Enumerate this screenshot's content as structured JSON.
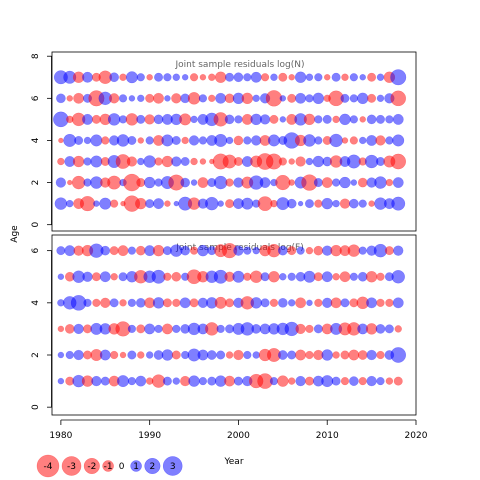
{
  "colors": {
    "positive": "#0000ff",
    "negative": "#ff0000",
    "fill_opacity": 0.5,
    "frame": "#000000",
    "title_text": "#666666"
  },
  "chart_data": {
    "type": "scatter",
    "subtype": "bubble residual plot",
    "ylabel": "Age",
    "xlabel": "Year",
    "xlim": [
      1979,
      2020
    ],
    "xticks": [
      1980,
      1990,
      2000,
      2010,
      2020
    ],
    "grid": false,
    "legend": {
      "placement": "bottom-left",
      "entries": [
        {
          "label": "-4",
          "value": -4
        },
        {
          "label": "-3",
          "value": -3
        },
        {
          "label": "-2",
          "value": -2
        },
        {
          "label": "-1",
          "value": -1
        },
        {
          "label": "0",
          "value": 0
        },
        {
          "label": "1",
          "value": 1
        },
        {
          "label": "2",
          "value": 2
        },
        {
          "label": "3",
          "value": 3
        }
      ]
    },
    "panels": [
      {
        "title": "Joint sample residuals log(N)",
        "ylim": [
          -0.3,
          8.2
        ],
        "yticks": [
          0,
          2,
          4,
          6,
          8
        ],
        "ages": [
          1,
          2,
          3,
          4,
          5,
          6,
          7
        ],
        "years": [
          1980,
          2018
        ],
        "residuals": [
          [
            1.2,
            0.4,
            -0.9,
            -1.8,
            0.3,
            1.1,
            -0.5,
            -0.2,
            -2.1,
            -1.0,
            0.6,
            0.9,
            -0.3,
            0.2,
            1.5,
            -1.2,
            0.8,
            1.4,
            0.3,
            -0.6,
            0.9,
            1.1,
            0.5,
            -1.7,
            -0.4,
            1.3,
            0.7,
            0.2,
            0.6,
            -0.5,
            1.0,
            0.4,
            -0.8,
            0.7,
            0.5,
            -0.3,
            1.2,
            0.9,
            1.5
          ],
          [
            0.8,
            -0.2,
            -1.4,
            0.5,
            1.2,
            -0.8,
            -1.5,
            0.4,
            -2.4,
            -0.6,
            1.0,
            0.5,
            1.3,
            -2.0,
            0.7,
            0.3,
            -0.9,
            0.6,
            1.4,
            -0.5,
            0.8,
            -1.1,
            1.6,
            0.9,
            0.4,
            -1.8,
            -0.3,
            1.1,
            -2.1,
            0.6,
            -0.9,
            0.5,
            1.0,
            0.3,
            -0.7,
            0.8,
            1.2,
            -0.4,
            0.9
          ],
          [
            -0.4,
            0.9,
            -1.0,
            0.5,
            1.1,
            -0.6,
            1.3,
            -1.7,
            -0.8,
            0.4,
            1.2,
            -0.5,
            -1.0,
            0.8,
            0.6,
            -0.4,
            -0.3,
            -0.2,
            -2.0,
            -1.5,
            -0.6,
            0.9,
            -1.1,
            -2.2,
            -2.0,
            -0.5,
            -0.3,
            -0.8,
            0.4,
            1.0,
            0.7,
            -1.2,
            0.9,
            1.5,
            -0.5,
            1.4,
            0.6,
            -1.1,
            -1.9
          ],
          [
            -0.2,
            1.3,
            0.6,
            0.4,
            1.1,
            -0.5,
            0.8,
            1.2,
            0.6,
            -0.3,
            0.5,
            -0.9,
            1.1,
            0.6,
            -0.4,
            0.8,
            0.5,
            0.9,
            1.3,
            0.4,
            -0.7,
            0.5,
            0.8,
            -0.9,
            1.1,
            0.6,
            2.1,
            -1.0,
            1.2,
            0.5,
            -0.6,
            1.4,
            -0.3,
            -0.5,
            0.4,
            0.9,
            -0.8,
            0.5,
            1.1
          ],
          [
            1.9,
            -0.4,
            -1.4,
            0.9,
            -0.6,
            -1.0,
            1.2,
            0.5,
            -1.2,
            0.6,
            -0.8,
            0.7,
            0.9,
            1.0,
            -1.1,
            0.4,
            0.9,
            1.4,
            -1.6,
            0.7,
            0.5,
            -0.9,
            1.0,
            0.8,
            -0.6,
            0.3,
            -0.9,
            1.2,
            -1.0,
            0.5,
            0.6,
            -0.4,
            1.0,
            0.5,
            -0.3,
            0.7,
            0.6,
            0.5,
            0.9
          ],
          [
            0.7,
            -0.3,
            -0.9,
            0.6,
            -2.0,
            1.4,
            -0.8,
            0.5,
            0.3,
            0.4,
            -0.6,
            -0.9,
            0.3,
            -0.8,
            0.7,
            -1.2,
            0.5,
            -0.4,
            0.9,
            -0.7,
            1.0,
            -1.0,
            0.4,
            0.8,
            -2.1,
            0.3,
            -0.6,
            0.9,
            0.5,
            1.0,
            -0.4,
            -1.9,
            0.6,
            0.5,
            1.0,
            -0.6,
            0.4,
            0.8,
            -1.9
          ],
          [
            1.5,
            1.3,
            -1.0,
            0.9,
            -0.6,
            -1.4,
            0.7,
            -0.4,
            1.1,
            0.5,
            -0.3,
            0.6,
            0.5,
            0.4,
            0.3,
            -0.5,
            -0.3,
            -0.4,
            -1.0,
            0.6,
            0.7,
            0.5,
            0.9,
            -0.5,
            0.4,
            -0.6,
            -0.3,
            1.0,
            0.4,
            0.5,
            -0.3,
            0.6,
            -0.4,
            0.5,
            0.3,
            -0.6,
            0.4,
            -1.0,
            2.0
          ]
        ]
      },
      {
        "title": "Joint sample residuals log(F)",
        "ylim": [
          -0.3,
          6.6
        ],
        "yticks": [
          0,
          2,
          4,
          6
        ],
        "ages": [
          1,
          2,
          3,
          4,
          5,
          6
        ],
        "years": [
          1980,
          2018
        ],
        "residuals": [
          [
            0.3,
            -0.6,
            1.2,
            -1.0,
            0.8,
            0.6,
            -0.9,
            1.1,
            0.5,
            0.9,
            -0.4,
            -1.4,
            0.6,
            0.4,
            -0.8,
            1.0,
            0.5,
            0.6,
            1.0,
            -0.9,
            0.6,
            0.8,
            -1.6,
            -1.9,
            0.5,
            -1.0,
            -0.4,
            0.8,
            -0.6,
            0.9,
            1.1,
            0.6,
            -0.5,
            0.7,
            -0.5,
            0.8,
            0.5,
            -0.4,
            -0.6
          ],
          [
            0.3,
            0.5,
            0.8,
            -0.6,
            -1.1,
            0.9,
            -0.5,
            -0.3,
            0.6,
            -0.4,
            0.4,
            0.7,
            1.0,
            -0.6,
            0.5,
            1.3,
            0.9,
            0.7,
            0.6,
            -0.4,
            -0.8,
            0.5,
            0.4,
            -1.2,
            -1.5,
            0.7,
            0.6,
            -0.9,
            -0.5,
            -0.8,
            1.0,
            -0.4,
            -0.6,
            -0.9,
            -0.7,
            0.8,
            -0.5,
            0.7,
            1.9
          ],
          [
            -0.3,
            -0.7,
            0.8,
            -0.6,
            1.1,
            1.0,
            -1.0,
            -1.8,
            0.5,
            -0.6,
            0.9,
            0.5,
            -0.9,
            0.5,
            0.7,
            1.2,
            0.9,
            -1.4,
            0.5,
            0.6,
            1.1,
            1.4,
            0.7,
            0.9,
            1.0,
            1.2,
            1.6,
            -0.8,
            -0.5,
            0.6,
            -0.9,
            1.1,
            -1.3,
            -1.4,
            0.9,
            -1.0,
            0.7,
            0.6,
            -0.4
          ],
          [
            0.4,
            1.4,
            1.9,
            0.5,
            -0.5,
            -0.8,
            0.6,
            -0.4,
            0.5,
            0.7,
            -0.9,
            1.0,
            -0.6,
            -0.5,
            0.9,
            -0.6,
            0.8,
            1.0,
            -1.1,
            -0.6,
            0.8,
            -1.4,
            1.0,
            0.6,
            -0.5,
            0.7,
            0.4,
            -0.9,
            0.3,
            -0.5,
            0.8,
            -0.9,
            0.6,
            -0.6,
            -1.2,
            0.9,
            -0.5,
            -0.5,
            0.9
          ],
          [
            0.3,
            -0.7,
            1.2,
            0.8,
            -0.6,
            0.9,
            -0.4,
            0.6,
            1.0,
            -1.4,
            1.2,
            1.5,
            -0.5,
            -0.7,
            0.5,
            -1.7,
            -1.0,
            1.2,
            1.5,
            -0.8,
            1.1,
            -0.5,
            -1.2,
            0.6,
            -1.0,
            0.4,
            0.5,
            0.7,
            1.1,
            -0.6,
            0.9,
            -0.4,
            -0.9,
            0.5,
            0.7,
            -1.0,
            -0.5,
            0.6,
            1.4
          ],
          [
            0.6,
            0.9,
            -0.8,
            -1.0,
            1.6,
            0.7,
            -0.6,
            -0.9,
            0.5,
            -0.7,
            0.9,
            -1.0,
            0.6,
            1.2,
            0.7,
            -0.5,
            1.0,
            0.6,
            -1.3,
            -1.8,
            0.8,
            0.5,
            0.4,
            -1.0,
            -1.4,
            0.7,
            -0.6,
            0.5,
            -0.4,
            -0.7,
            0.8,
            -1.0,
            -0.9,
            -1.2,
            0.5,
            0.8,
            1.4,
            -0.6,
            0.8
          ]
        ]
      }
    ]
  }
}
